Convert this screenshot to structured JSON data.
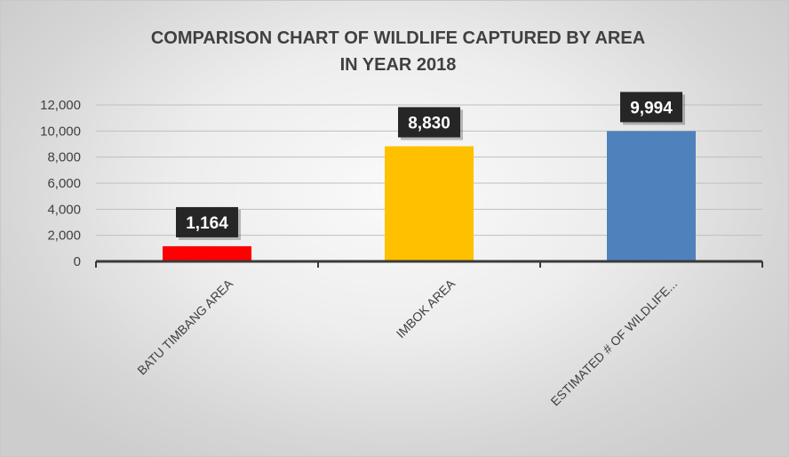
{
  "chart_data": {
    "type": "bar",
    "title": "COMPARISON  CHART OF WILDLIFE CAPTURED BY AREA",
    "subtitle": "IN YEAR 2018",
    "categories": [
      "BATU TIMBANG AREA",
      "IMBOK AREA",
      "ESTIMATED # OF WILDLIFE..."
    ],
    "values": [
      1164,
      8830,
      9994
    ],
    "data_labels": [
      "1,164",
      "8,830",
      "9,994"
    ],
    "bar_colors": [
      "#ff0000",
      "#ffc000",
      "#4f81bd"
    ],
    "ylim": [
      0,
      12000
    ],
    "yticks": [
      0,
      2000,
      4000,
      6000,
      8000,
      10000,
      12000
    ],
    "ytick_labels": [
      "0",
      "2,000",
      "4,000",
      "6,000",
      "8,000",
      "10,000",
      "12,000"
    ],
    "xlabel": "",
    "ylabel": "",
    "grid": true,
    "legend": "none",
    "label_box_color": "#262626"
  }
}
